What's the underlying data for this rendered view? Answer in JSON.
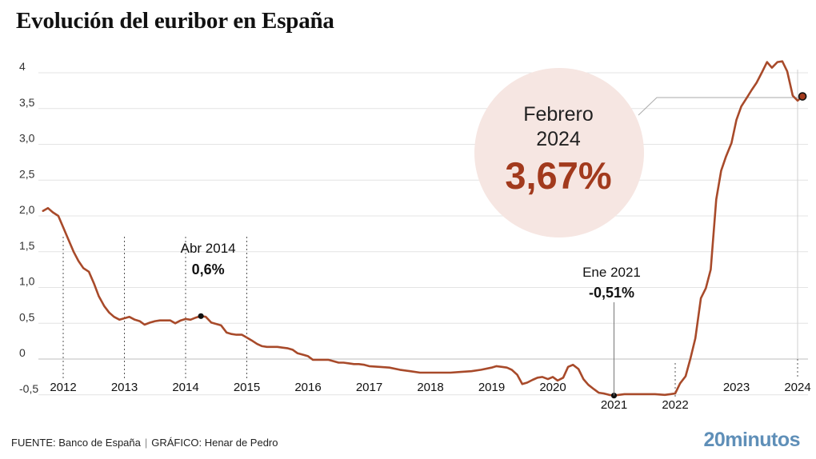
{
  "header": {
    "title": "Evolución del euribor en España"
  },
  "footer": {
    "source": "FUENTE: Banco de España",
    "separator": "|",
    "credit": "GRÁFICO: Henar de Pedro"
  },
  "brand": {
    "name": "20minutos",
    "color": "#5f8fb8"
  },
  "colors": {
    "line": "#a84a2a",
    "highlight_circle": "#f6e6e2",
    "highlight_value": "#a23a1d",
    "grid": "#e4e4e4"
  },
  "chart_data": {
    "type": "line",
    "title": "Evolución del euribor en España",
    "xlabel": "",
    "ylabel": "",
    "ylim": [
      -0.5,
      4
    ],
    "xlim": [
      2011.7,
      2024.25
    ],
    "grid": true,
    "yticks": [
      {
        "value": 4,
        "label": "4"
      },
      {
        "value": 3.5,
        "label": "3,5"
      },
      {
        "value": 3.0,
        "label": "3,0"
      },
      {
        "value": 2.5,
        "label": "2,5"
      },
      {
        "value": 2.0,
        "label": "2,0"
      },
      {
        "value": 1.5,
        "label": "1,5"
      },
      {
        "value": 1.0,
        "label": "1,0"
      },
      {
        "value": 0.5,
        "label": "0,5"
      },
      {
        "value": 0,
        "label": "0"
      },
      {
        "value": -0.5,
        "label": "-0,5"
      }
    ],
    "xticks": [
      {
        "value": 2012,
        "label": "2012",
        "guide": true
      },
      {
        "value": 2013,
        "label": "2013",
        "guide": true
      },
      {
        "value": 2014,
        "label": "2014",
        "guide": true
      },
      {
        "value": 2015,
        "label": "2015",
        "guide": true
      },
      {
        "value": 2016,
        "label": "2016",
        "guide": false
      },
      {
        "value": 2017,
        "label": "2017",
        "guide": false
      },
      {
        "value": 2018,
        "label": "2018",
        "guide": false
      },
      {
        "value": 2019,
        "label": "2019",
        "guide": false
      },
      {
        "value": 2020,
        "label": "2020",
        "guide": false
      },
      {
        "value": 2021,
        "label": "2021",
        "guide": true,
        "below": true
      },
      {
        "value": 2022,
        "label": "2022",
        "guide": true,
        "below": true
      },
      {
        "value": 2023,
        "label": "2023",
        "guide": false
      },
      {
        "value": 2024,
        "label": "2024",
        "guide": true
      }
    ],
    "series": [
      {
        "values": [
          {
            "x": 2011.67,
            "y": 2.07
          },
          {
            "x": 2011.75,
            "y": 2.11
          },
          {
            "x": 2011.83,
            "y": 2.05
          },
          {
            "x": 2011.92,
            "y": 2.0
          },
          {
            "x": 2012.0,
            "y": 1.84
          },
          {
            "x": 2012.08,
            "y": 1.68
          },
          {
            "x": 2012.17,
            "y": 1.5
          },
          {
            "x": 2012.25,
            "y": 1.37
          },
          {
            "x": 2012.33,
            "y": 1.27
          },
          {
            "x": 2012.42,
            "y": 1.22
          },
          {
            "x": 2012.5,
            "y": 1.06
          },
          {
            "x": 2012.58,
            "y": 0.88
          },
          {
            "x": 2012.67,
            "y": 0.74
          },
          {
            "x": 2012.75,
            "y": 0.65
          },
          {
            "x": 2012.83,
            "y": 0.59
          },
          {
            "x": 2012.92,
            "y": 0.55
          },
          {
            "x": 2013.0,
            "y": 0.57
          },
          {
            "x": 2013.08,
            "y": 0.59
          },
          {
            "x": 2013.17,
            "y": 0.55
          },
          {
            "x": 2013.25,
            "y": 0.53
          },
          {
            "x": 2013.33,
            "y": 0.48
          },
          {
            "x": 2013.42,
            "y": 0.51
          },
          {
            "x": 2013.5,
            "y": 0.53
          },
          {
            "x": 2013.58,
            "y": 0.54
          },
          {
            "x": 2013.67,
            "y": 0.54
          },
          {
            "x": 2013.75,
            "y": 0.54
          },
          {
            "x": 2013.83,
            "y": 0.5
          },
          {
            "x": 2013.92,
            "y": 0.54
          },
          {
            "x": 2014.0,
            "y": 0.56
          },
          {
            "x": 2014.08,
            "y": 0.55
          },
          {
            "x": 2014.17,
            "y": 0.58
          },
          {
            "x": 2014.25,
            "y": 0.6
          },
          {
            "x": 2014.33,
            "y": 0.59
          },
          {
            "x": 2014.42,
            "y": 0.51
          },
          {
            "x": 2014.5,
            "y": 0.49
          },
          {
            "x": 2014.58,
            "y": 0.47
          },
          {
            "x": 2014.67,
            "y": 0.37
          },
          {
            "x": 2014.75,
            "y": 0.35
          },
          {
            "x": 2014.83,
            "y": 0.34
          },
          {
            "x": 2014.92,
            "y": 0.34
          },
          {
            "x": 2015.0,
            "y": 0.3
          },
          {
            "x": 2015.08,
            "y": 0.26
          },
          {
            "x": 2015.17,
            "y": 0.21
          },
          {
            "x": 2015.25,
            "y": 0.18
          },
          {
            "x": 2015.33,
            "y": 0.17
          },
          {
            "x": 2015.42,
            "y": 0.17
          },
          {
            "x": 2015.5,
            "y": 0.17
          },
          {
            "x": 2015.58,
            "y": 0.16
          },
          {
            "x": 2015.67,
            "y": 0.15
          },
          {
            "x": 2015.75,
            "y": 0.13
          },
          {
            "x": 2015.83,
            "y": 0.08
          },
          {
            "x": 2015.92,
            "y": 0.06
          },
          {
            "x": 2016.0,
            "y": 0.04
          },
          {
            "x": 2016.08,
            "y": -0.01
          },
          {
            "x": 2016.17,
            "y": -0.01
          },
          {
            "x": 2016.25,
            "y": -0.01
          },
          {
            "x": 2016.33,
            "y": -0.01
          },
          {
            "x": 2016.42,
            "y": -0.03
          },
          {
            "x": 2016.5,
            "y": -0.05
          },
          {
            "x": 2016.58,
            "y": -0.05
          },
          {
            "x": 2016.67,
            "y": -0.06
          },
          {
            "x": 2016.75,
            "y": -0.07
          },
          {
            "x": 2016.83,
            "y": -0.07
          },
          {
            "x": 2016.92,
            "y": -0.08
          },
          {
            "x": 2017.0,
            "y": -0.1
          },
          {
            "x": 2017.17,
            "y": -0.11
          },
          {
            "x": 2017.33,
            "y": -0.12
          },
          {
            "x": 2017.5,
            "y": -0.15
          },
          {
            "x": 2017.67,
            "y": -0.17
          },
          {
            "x": 2017.83,
            "y": -0.19
          },
          {
            "x": 2018.0,
            "y": -0.19
          },
          {
            "x": 2018.17,
            "y": -0.19
          },
          {
            "x": 2018.33,
            "y": -0.19
          },
          {
            "x": 2018.5,
            "y": -0.18
          },
          {
            "x": 2018.67,
            "y": -0.17
          },
          {
            "x": 2018.83,
            "y": -0.15
          },
          {
            "x": 2019.0,
            "y": -0.12
          },
          {
            "x": 2019.08,
            "y": -0.1
          },
          {
            "x": 2019.17,
            "y": -0.11
          },
          {
            "x": 2019.25,
            "y": -0.12
          },
          {
            "x": 2019.33,
            "y": -0.15
          },
          {
            "x": 2019.42,
            "y": -0.22
          },
          {
            "x": 2019.5,
            "y": -0.35
          },
          {
            "x": 2019.58,
            "y": -0.33
          },
          {
            "x": 2019.67,
            "y": -0.29
          },
          {
            "x": 2019.75,
            "y": -0.26
          },
          {
            "x": 2019.83,
            "y": -0.25
          },
          {
            "x": 2019.92,
            "y": -0.28
          },
          {
            "x": 2020.0,
            "y": -0.25
          },
          {
            "x": 2020.08,
            "y": -0.3
          },
          {
            "x": 2020.17,
            "y": -0.26
          },
          {
            "x": 2020.25,
            "y": -0.11
          },
          {
            "x": 2020.33,
            "y": -0.08
          },
          {
            "x": 2020.42,
            "y": -0.14
          },
          {
            "x": 2020.5,
            "y": -0.28
          },
          {
            "x": 2020.58,
            "y": -0.36
          },
          {
            "x": 2020.67,
            "y": -0.42
          },
          {
            "x": 2020.75,
            "y": -0.47
          },
          {
            "x": 2020.83,
            "y": -0.48
          },
          {
            "x": 2020.92,
            "y": -0.5
          },
          {
            "x": 2021.0,
            "y": -0.51
          },
          {
            "x": 2021.17,
            "y": -0.49
          },
          {
            "x": 2021.33,
            "y": -0.49
          },
          {
            "x": 2021.5,
            "y": -0.49
          },
          {
            "x": 2021.67,
            "y": -0.49
          },
          {
            "x": 2021.83,
            "y": -0.5
          },
          {
            "x": 2021.92,
            "y": -0.49
          },
          {
            "x": 2022.0,
            "y": -0.48
          },
          {
            "x": 2022.08,
            "y": -0.34
          },
          {
            "x": 2022.17,
            "y": -0.24
          },
          {
            "x": 2022.25,
            "y": 0.01
          },
          {
            "x": 2022.33,
            "y": 0.29
          },
          {
            "x": 2022.42,
            "y": 0.85
          },
          {
            "x": 2022.5,
            "y": 0.99
          },
          {
            "x": 2022.58,
            "y": 1.25
          },
          {
            "x": 2022.67,
            "y": 2.23
          },
          {
            "x": 2022.75,
            "y": 2.63
          },
          {
            "x": 2022.83,
            "y": 2.83
          },
          {
            "x": 2022.92,
            "y": 3.02
          },
          {
            "x": 2023.0,
            "y": 3.34
          },
          {
            "x": 2023.08,
            "y": 3.53
          },
          {
            "x": 2023.17,
            "y": 3.65
          },
          {
            "x": 2023.25,
            "y": 3.76
          },
          {
            "x": 2023.33,
            "y": 3.86
          },
          {
            "x": 2023.42,
            "y": 4.01
          },
          {
            "x": 2023.5,
            "y": 4.15
          },
          {
            "x": 2023.58,
            "y": 4.07
          },
          {
            "x": 2023.67,
            "y": 4.15
          },
          {
            "x": 2023.75,
            "y": 4.16
          },
          {
            "x": 2023.83,
            "y": 4.02
          },
          {
            "x": 2023.92,
            "y": 3.68
          },
          {
            "x": 2024.0,
            "y": 3.61
          },
          {
            "x": 2024.08,
            "y": 3.67
          }
        ]
      }
    ],
    "annotations": [
      {
        "x": 2014.25,
        "y": 0.6,
        "date": "Abr 2014",
        "value": "0,6%"
      },
      {
        "x": 2021.0,
        "y": -0.51,
        "date": "Ene 2021",
        "value": "-0,51%"
      }
    ],
    "highlight": {
      "x": 2024.08,
      "y": 3.67,
      "date_line1": "Febrero",
      "date_line2": "2024",
      "value": "3,67%"
    }
  }
}
